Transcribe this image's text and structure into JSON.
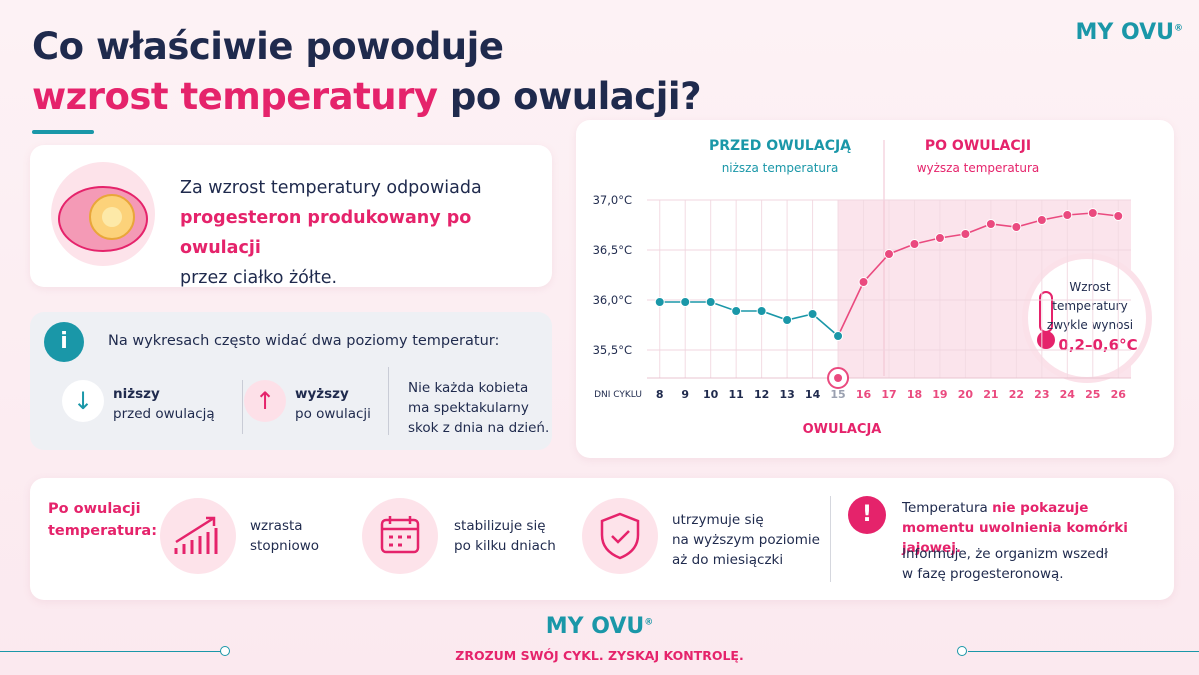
{
  "header": {
    "title_line1": "Co właściwie powoduje",
    "title_highlight": "wzrost temperatury",
    "title_rest": "po owulacji?",
    "logo": "MY OVU",
    "registered": "®"
  },
  "intro": {
    "line1": "Za wzrost temperatury odpowiada",
    "highlight": "progesteron produkowany po owulacji",
    "line3": "przez ciałko żółte."
  },
  "info": {
    "heading": "Na wykresach często widać dwa poziomy temperatur:",
    "items": [
      {
        "title": "niższy",
        "text": "przed owulacją"
      },
      {
        "title": "wyższy",
        "text": "po owulacji"
      }
    ],
    "note": "Nie każda kobieta\nma spektakularny\nskok z dnia na dzień."
  },
  "chart_data": {
    "type": "line",
    "header_before": "PRZED OWULACJĄ",
    "sub_before": "niższa temperatura",
    "header_after": "PO OWULACJI",
    "sub_after": "wyższa temperatura",
    "x_label": "DNI CYKLU",
    "ovulation_label": "OWULACJA",
    "note": "Wzrost\ntemperatury\nzwykle wynosi",
    "note_value": "0,2–0,6°C",
    "x": [
      8,
      9,
      10,
      11,
      12,
      13,
      14,
      15,
      16,
      17,
      18,
      19,
      20,
      21,
      22,
      23,
      24,
      25,
      26
    ],
    "values": [
      35.98,
      35.98,
      35.98,
      35.89,
      35.89,
      35.8,
      35.86,
      35.64,
      36.18,
      36.46,
      36.56,
      36.62,
      36.66,
      36.76,
      36.73,
      36.8,
      36.85,
      36.87,
      36.84
    ],
    "ovulation_day": 15,
    "color_before": "#1a97a8",
    "color_after": "#ea4a7f",
    "xlim": [
      7.5,
      26.5
    ],
    "ylim": [
      35.22,
      37.0
    ],
    "yticks": [
      {
        "value": 35.5,
        "label": "35,5°C"
      },
      {
        "value": 36,
        "label": "36,0°C"
      },
      {
        "value": 36.5,
        "label": "36,5°C"
      },
      {
        "value": 37,
        "label": "37,0°C"
      }
    ],
    "grid": true
  },
  "summary": {
    "label": "Po owulacji\ntemperatura:",
    "items": [
      "wzrasta\nstopniowo",
      "stabilizuje się\npo kilku dniach",
      "utrzymuje się\nna wyższym poziomie\naż do miesiączki"
    ],
    "alert_text": "Temperatura",
    "alert_highlight": "nie pokazuje momentu uwolnienia komórki jajowej.",
    "alert_text2": "Informuje, że organizm wszedł\nw fazę progesteronową."
  },
  "footer": {
    "logo": "MY OVU",
    "registered": "®",
    "tagline": "ZROZUM SWÓJ CYKL. ZYSKAJ KONTROLĘ."
  }
}
